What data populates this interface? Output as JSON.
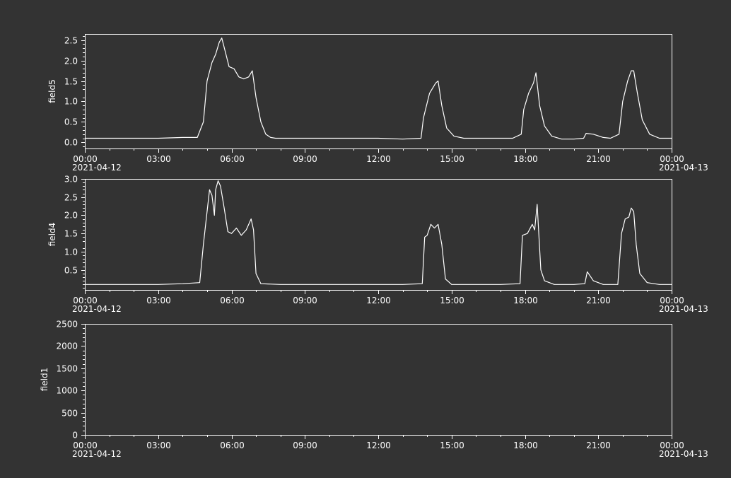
{
  "theme": {
    "background": "#333333",
    "foreground": "#ffffff"
  },
  "chart_data": [
    {
      "type": "line",
      "ylabel": "field5",
      "ylim": [
        -0.15,
        2.65
      ],
      "yticks": [
        "0.0",
        "0.5",
        "1.0",
        "1.5",
        "2.0",
        "2.5"
      ],
      "ytick_values": [
        0,
        0.5,
        1.0,
        1.5,
        2.0,
        2.5
      ],
      "xlim_hours": [
        0,
        24
      ],
      "xticks": [
        "00:00",
        "03:00",
        "06:00",
        "09:00",
        "12:00",
        "15:00",
        "18:00",
        "21:00",
        "00:00"
      ],
      "xdates": [
        "2021-04-12",
        "2021-04-13"
      ],
      "grid": false,
      "series": [
        {
          "x": [
            0,
            1,
            2,
            3,
            4,
            4.6,
            4.85,
            5.0,
            5.2,
            5.35,
            5.5,
            5.6,
            5.75,
            5.9,
            6.1,
            6.3,
            6.5,
            6.7,
            6.85,
            7.0,
            7.2,
            7.4,
            7.6,
            7.8,
            8.2,
            9,
            10,
            11,
            12,
            13,
            13.75,
            13.85,
            14.1,
            14.35,
            14.45,
            14.6,
            14.8,
            15.1,
            15.5,
            16,
            17,
            17.5,
            17.85,
            17.95,
            18.15,
            18.35,
            18.45,
            18.6,
            18.8,
            19.1,
            19.5,
            20,
            20.4,
            20.5,
            20.8,
            21.2,
            21.5,
            21.85,
            22.0,
            22.2,
            22.35,
            22.45,
            22.6,
            22.8,
            23.1,
            23.5,
            24
          ],
          "y": [
            0.1,
            0.1,
            0.1,
            0.1,
            0.12,
            0.12,
            0.5,
            1.5,
            1.95,
            2.15,
            2.45,
            2.55,
            2.2,
            1.85,
            1.8,
            1.6,
            1.55,
            1.6,
            1.75,
            1.1,
            0.5,
            0.2,
            0.12,
            0.1,
            0.1,
            0.1,
            0.1,
            0.1,
            0.1,
            0.08,
            0.1,
            0.6,
            1.2,
            1.45,
            1.5,
            0.9,
            0.35,
            0.15,
            0.1,
            0.1,
            0.1,
            0.1,
            0.2,
            0.8,
            1.2,
            1.45,
            1.7,
            0.9,
            0.4,
            0.15,
            0.08,
            0.08,
            0.1,
            0.22,
            0.2,
            0.12,
            0.1,
            0.2,
            1.0,
            1.5,
            1.75,
            1.75,
            1.2,
            0.55,
            0.2,
            0.1,
            0.1
          ]
        }
      ]
    },
    {
      "type": "line",
      "ylabel": "field4",
      "ylim": [
        -0.05,
        3.0
      ],
      "yticks": [
        "0.5",
        "1.0",
        "1.5",
        "2.0",
        "2.5",
        "3.0"
      ],
      "ytick_values": [
        0.5,
        1.0,
        1.5,
        2.0,
        2.5,
        3.0
      ],
      "xlim_hours": [
        0,
        24
      ],
      "xticks": [
        "00:00",
        "03:00",
        "06:00",
        "09:00",
        "12:00",
        "15:00",
        "18:00",
        "21:00",
        "00:00"
      ],
      "xdates": [
        "2021-04-12",
        "2021-04-13"
      ],
      "grid": false,
      "series": [
        {
          "x": [
            0,
            1,
            2,
            3,
            4,
            4.7,
            4.85,
            5.0,
            5.1,
            5.2,
            5.3,
            5.35,
            5.45,
            5.55,
            5.7,
            5.85,
            6.0,
            6.2,
            6.4,
            6.6,
            6.8,
            6.9,
            7.0,
            7.2,
            8,
            9,
            10,
            11,
            12,
            13,
            13.8,
            13.9,
            14.0,
            14.15,
            14.3,
            14.45,
            14.6,
            14.75,
            15,
            16,
            17,
            17.8,
            17.9,
            18.1,
            18.3,
            18.4,
            18.5,
            18.65,
            18.8,
            19.2,
            20,
            20.45,
            20.55,
            20.8,
            21.2,
            21.8,
            21.95,
            22.1,
            22.25,
            22.35,
            22.45,
            22.55,
            22.7,
            23,
            23.5,
            24
          ],
          "y": [
            0.1,
            0.1,
            0.1,
            0.1,
            0.12,
            0.15,
            1.2,
            2.1,
            2.7,
            2.55,
            2.0,
            2.7,
            2.95,
            2.8,
            2.2,
            1.55,
            1.5,
            1.65,
            1.45,
            1.6,
            1.9,
            1.6,
            0.4,
            0.12,
            0.1,
            0.1,
            0.1,
            0.1,
            0.1,
            0.1,
            0.12,
            1.4,
            1.45,
            1.75,
            1.65,
            1.75,
            1.2,
            0.25,
            0.1,
            0.1,
            0.1,
            0.12,
            1.45,
            1.5,
            1.75,
            1.6,
            2.3,
            0.5,
            0.2,
            0.1,
            0.1,
            0.12,
            0.45,
            0.2,
            0.1,
            0.1,
            1.5,
            1.9,
            1.95,
            2.2,
            2.1,
            1.2,
            0.4,
            0.15,
            0.1,
            0.1
          ]
        }
      ]
    },
    {
      "type": "line",
      "ylabel": "field1",
      "ylim": [
        0,
        2500
      ],
      "yticks": [
        "0",
        "500",
        "1000",
        "1500",
        "2000",
        "2500"
      ],
      "ytick_values": [
        0,
        500,
        1000,
        1500,
        2000,
        2500
      ],
      "xlim_hours": [
        0,
        24
      ],
      "xticks": [
        "00:00",
        "03:00",
        "06:00",
        "09:00",
        "12:00",
        "15:00",
        "18:00",
        "21:00",
        "00:00"
      ],
      "xdates": [
        "2021-04-12",
        "2021-04-13"
      ],
      "grid": false,
      "series": []
    }
  ]
}
